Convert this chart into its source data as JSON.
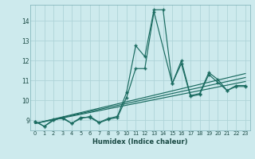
{
  "xlabel": "Humidex (Indice chaleur)",
  "bg_color": "#cdeaed",
  "line_color": "#1a6b60",
  "grid_color": "#aed4d8",
  "xlim": [
    -0.5,
    23.5
  ],
  "ylim": [
    8.5,
    14.8
  ],
  "yticks": [
    9,
    10,
    11,
    12,
    13,
    14
  ],
  "xticks": [
    0,
    1,
    2,
    3,
    4,
    5,
    6,
    7,
    8,
    9,
    10,
    11,
    12,
    13,
    14,
    15,
    16,
    17,
    18,
    19,
    20,
    21,
    22,
    23
  ],
  "series_with_markers": [
    {
      "x": [
        0,
        1,
        2,
        3,
        4,
        5,
        6,
        7,
        8,
        9,
        10,
        11,
        12,
        13,
        14,
        15,
        16,
        17,
        18,
        19,
        20,
        21,
        22,
        23
      ],
      "y": [
        8.95,
        8.7,
        9.05,
        9.1,
        8.85,
        9.1,
        9.2,
        8.9,
        9.1,
        9.2,
        10.4,
        12.75,
        12.2,
        14.55,
        14.55,
        10.85,
        12.0,
        10.25,
        10.35,
        11.4,
        11.05,
        10.5,
        10.7,
        10.7
      ]
    },
    {
      "x": [
        0,
        1,
        2,
        3,
        4,
        5,
        6,
        7,
        8,
        9,
        10,
        11,
        12,
        13,
        15,
        16,
        17,
        18,
        19,
        20,
        21,
        22,
        23
      ],
      "y": [
        8.95,
        8.7,
        9.0,
        9.15,
        8.85,
        9.15,
        9.15,
        8.88,
        9.05,
        9.15,
        10.15,
        11.6,
        11.6,
        14.45,
        10.85,
        11.85,
        10.2,
        10.3,
        11.3,
        10.9,
        10.5,
        10.75,
        10.75
      ]
    }
  ],
  "series_straight": [
    {
      "x": [
        0,
        23
      ],
      "y": [
        8.85,
        10.95
      ]
    },
    {
      "x": [
        0,
        23
      ],
      "y": [
        8.85,
        11.15
      ]
    },
    {
      "x": [
        0,
        23
      ],
      "y": [
        8.85,
        11.35
      ]
    }
  ]
}
